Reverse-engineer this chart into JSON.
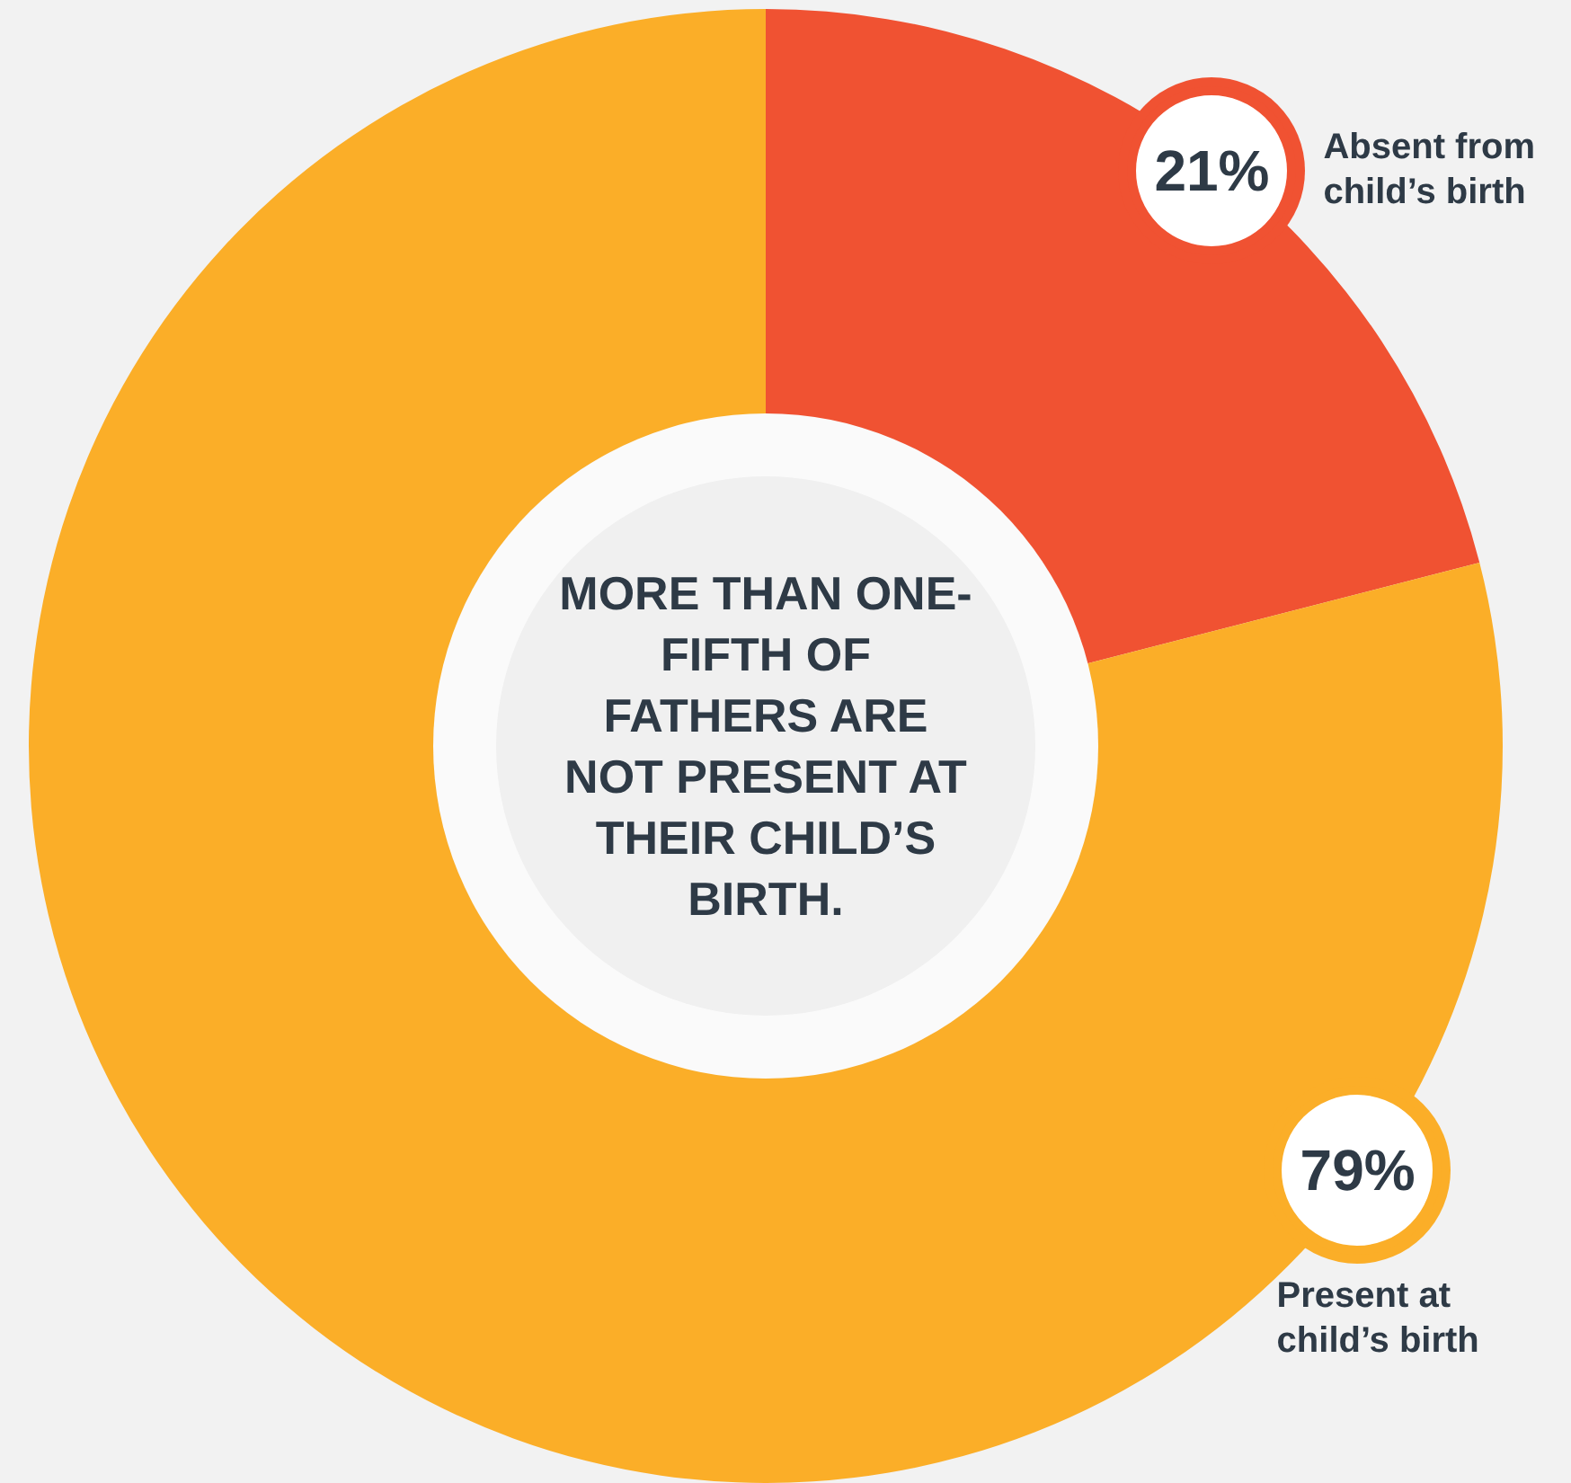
{
  "chart_data": {
    "type": "donut",
    "title": "MORE THAN ONE-FIFTH OF FATHERS ARE NOT PRESENT AT THEIR CHILD’S BIRTH.",
    "categories": [
      "Absent from child’s birth",
      "Present at child’s birth"
    ],
    "values": [
      21,
      79
    ],
    "colors": [
      "#f05232",
      "#fbae28"
    ],
    "value_labels": [
      "21%",
      "79%"
    ],
    "legend": false
  }
}
